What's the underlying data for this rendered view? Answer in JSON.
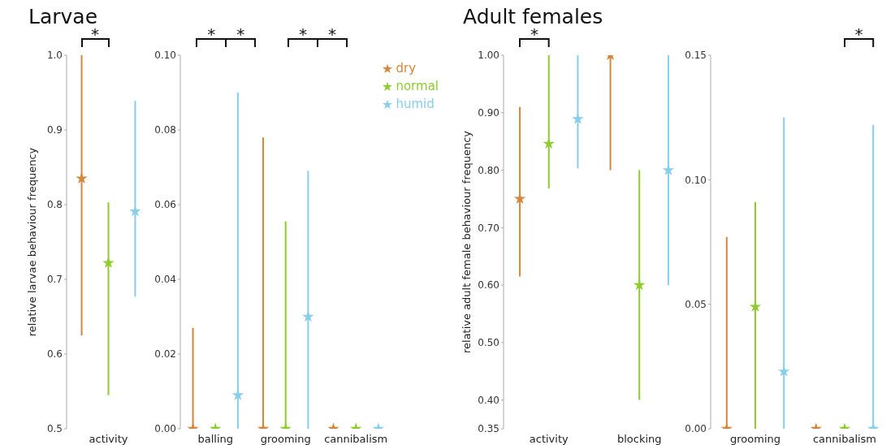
{
  "chart_data": [
    {
      "type": "scatter",
      "title": "Larvae",
      "ylabel": "relative larvae behaviour frequency",
      "categories": [
        "activity"
      ],
      "marker": "star",
      "grid": false,
      "ylim": [
        0.5,
        1.0
      ],
      "yticks": [
        0.5,
        0.6,
        0.7,
        0.8,
        0.9,
        {
          "value": 1.0,
          "label": "1.0"
        }
      ],
      "series": [
        {
          "color": "#d4873c",
          "values": [
            0.835
          ],
          "errors": [
            [
              0.625,
              1.0
            ]
          ]
        },
        {
          "color": "#8ccc2c",
          "values": [
            0.722
          ],
          "errors": [
            [
              0.545,
              0.803
            ]
          ]
        },
        {
          "color": "#87ceeb",
          "values": [
            0.791
          ],
          "errors": [
            [
              0.677,
              0.939
            ]
          ]
        }
      ],
      "annotations": [
        "*"
      ]
    },
    {
      "type": "scatter",
      "categories": [
        "balling",
        "grooming",
        "cannibalism"
      ],
      "marker": "star",
      "grid": false,
      "legend": "top right",
      "ylim": [
        0,
        0.1
      ],
      "yticks": [
        {
          "value": 0,
          "label": "0.00"
        },
        {
          "value": 0.02,
          "label": "0.02"
        },
        {
          "value": 0.04,
          "label": "0.04"
        },
        {
          "value": 0.06,
          "label": "0.06"
        },
        {
          "value": 0.08,
          "label": "0.08"
        },
        {
          "value": 0.1,
          "label": "0.10"
        }
      ],
      "series": [
        {
          "name": "dry",
          "color": "#d4873c",
          "values": [
            0,
            0,
            0
          ],
          "errors": [
            [
              0,
              0.027
            ],
            [
              0,
              0.078
            ],
            null
          ]
        },
        {
          "name": "normal",
          "color": "#8ccc2c",
          "values": [
            0,
            0,
            0
          ],
          "errors": [
            null,
            [
              0,
              0.0555
            ],
            null
          ]
        },
        {
          "name": "humid",
          "color": "#87ceeb",
          "values": [
            0.009,
            0.03,
            0
          ],
          "errors": [
            [
              0,
              0.09
            ],
            [
              0,
              0.069
            ],
            null
          ]
        }
      ],
      "annotations": [
        "*",
        "*",
        "*",
        "*"
      ]
    },
    {
      "type": "scatter",
      "title": "Adult females",
      "ylabel": "relative adult female behaviour frequency",
      "categories": [
        "activity",
        "blocking"
      ],
      "marker": "star",
      "grid": false,
      "ylim": [
        0.35,
        1.0
      ],
      "yticks": [
        {
          "value": 0.35,
          "label": "0.35"
        },
        {
          "value": 0.4,
          "label": "0.40"
        },
        {
          "value": 0.5,
          "label": "0.50"
        },
        {
          "value": 0.6,
          "label": "0.60"
        },
        {
          "value": 0.7,
          "label": "0.70"
        },
        {
          "value": 0.8,
          "label": "0.80"
        },
        {
          "value": 0.9,
          "label": "0.90"
        },
        {
          "value": 1.0,
          "label": "1.00"
        }
      ],
      "series": [
        {
          "color": "#d4873c",
          "values": [
            0.75,
            1.0
          ],
          "errors": [
            [
              0.615,
              0.91
            ],
            [
              0.8,
              1.0
            ]
          ]
        },
        {
          "color": "#8ccc2c",
          "values": [
            0.846,
            0.6
          ],
          "errors": [
            [
              0.768,
              1.0
            ],
            [
              0.4,
              0.8
            ]
          ]
        },
        {
          "color": "#87ceeb",
          "values": [
            0.889,
            0.8
          ],
          "errors": [
            [
              0.803,
              1.0
            ],
            [
              0.6,
              1.0
            ]
          ]
        }
      ],
      "annotations": [
        "*"
      ]
    },
    {
      "type": "scatter",
      "categories": [
        "grooming",
        "cannibalism"
      ],
      "marker": "star",
      "grid": false,
      "ylim": [
        0,
        0.15
      ],
      "yticks": [
        {
          "value": 0,
          "label": "0.00"
        },
        {
          "value": 0.05,
          "label": "0.05"
        },
        {
          "value": 0.1,
          "label": "0.10"
        },
        {
          "value": 0.15,
          "label": "0.15"
        }
      ],
      "series": [
        {
          "color": "#d4873c",
          "values": [
            0,
            0
          ],
          "errors": [
            [
              0,
              0.077
            ],
            null
          ]
        },
        {
          "color": "#8ccc2c",
          "values": [
            0.049,
            0
          ],
          "errors": [
            [
              0,
              0.091
            ],
            null
          ]
        },
        {
          "color": "#87ceeb",
          "values": [
            0.023,
            0
          ],
          "errors": [
            [
              0,
              0.125
            ],
            [
              0,
              0.122
            ]
          ]
        }
      ],
      "annotations": [
        "*"
      ]
    }
  ]
}
